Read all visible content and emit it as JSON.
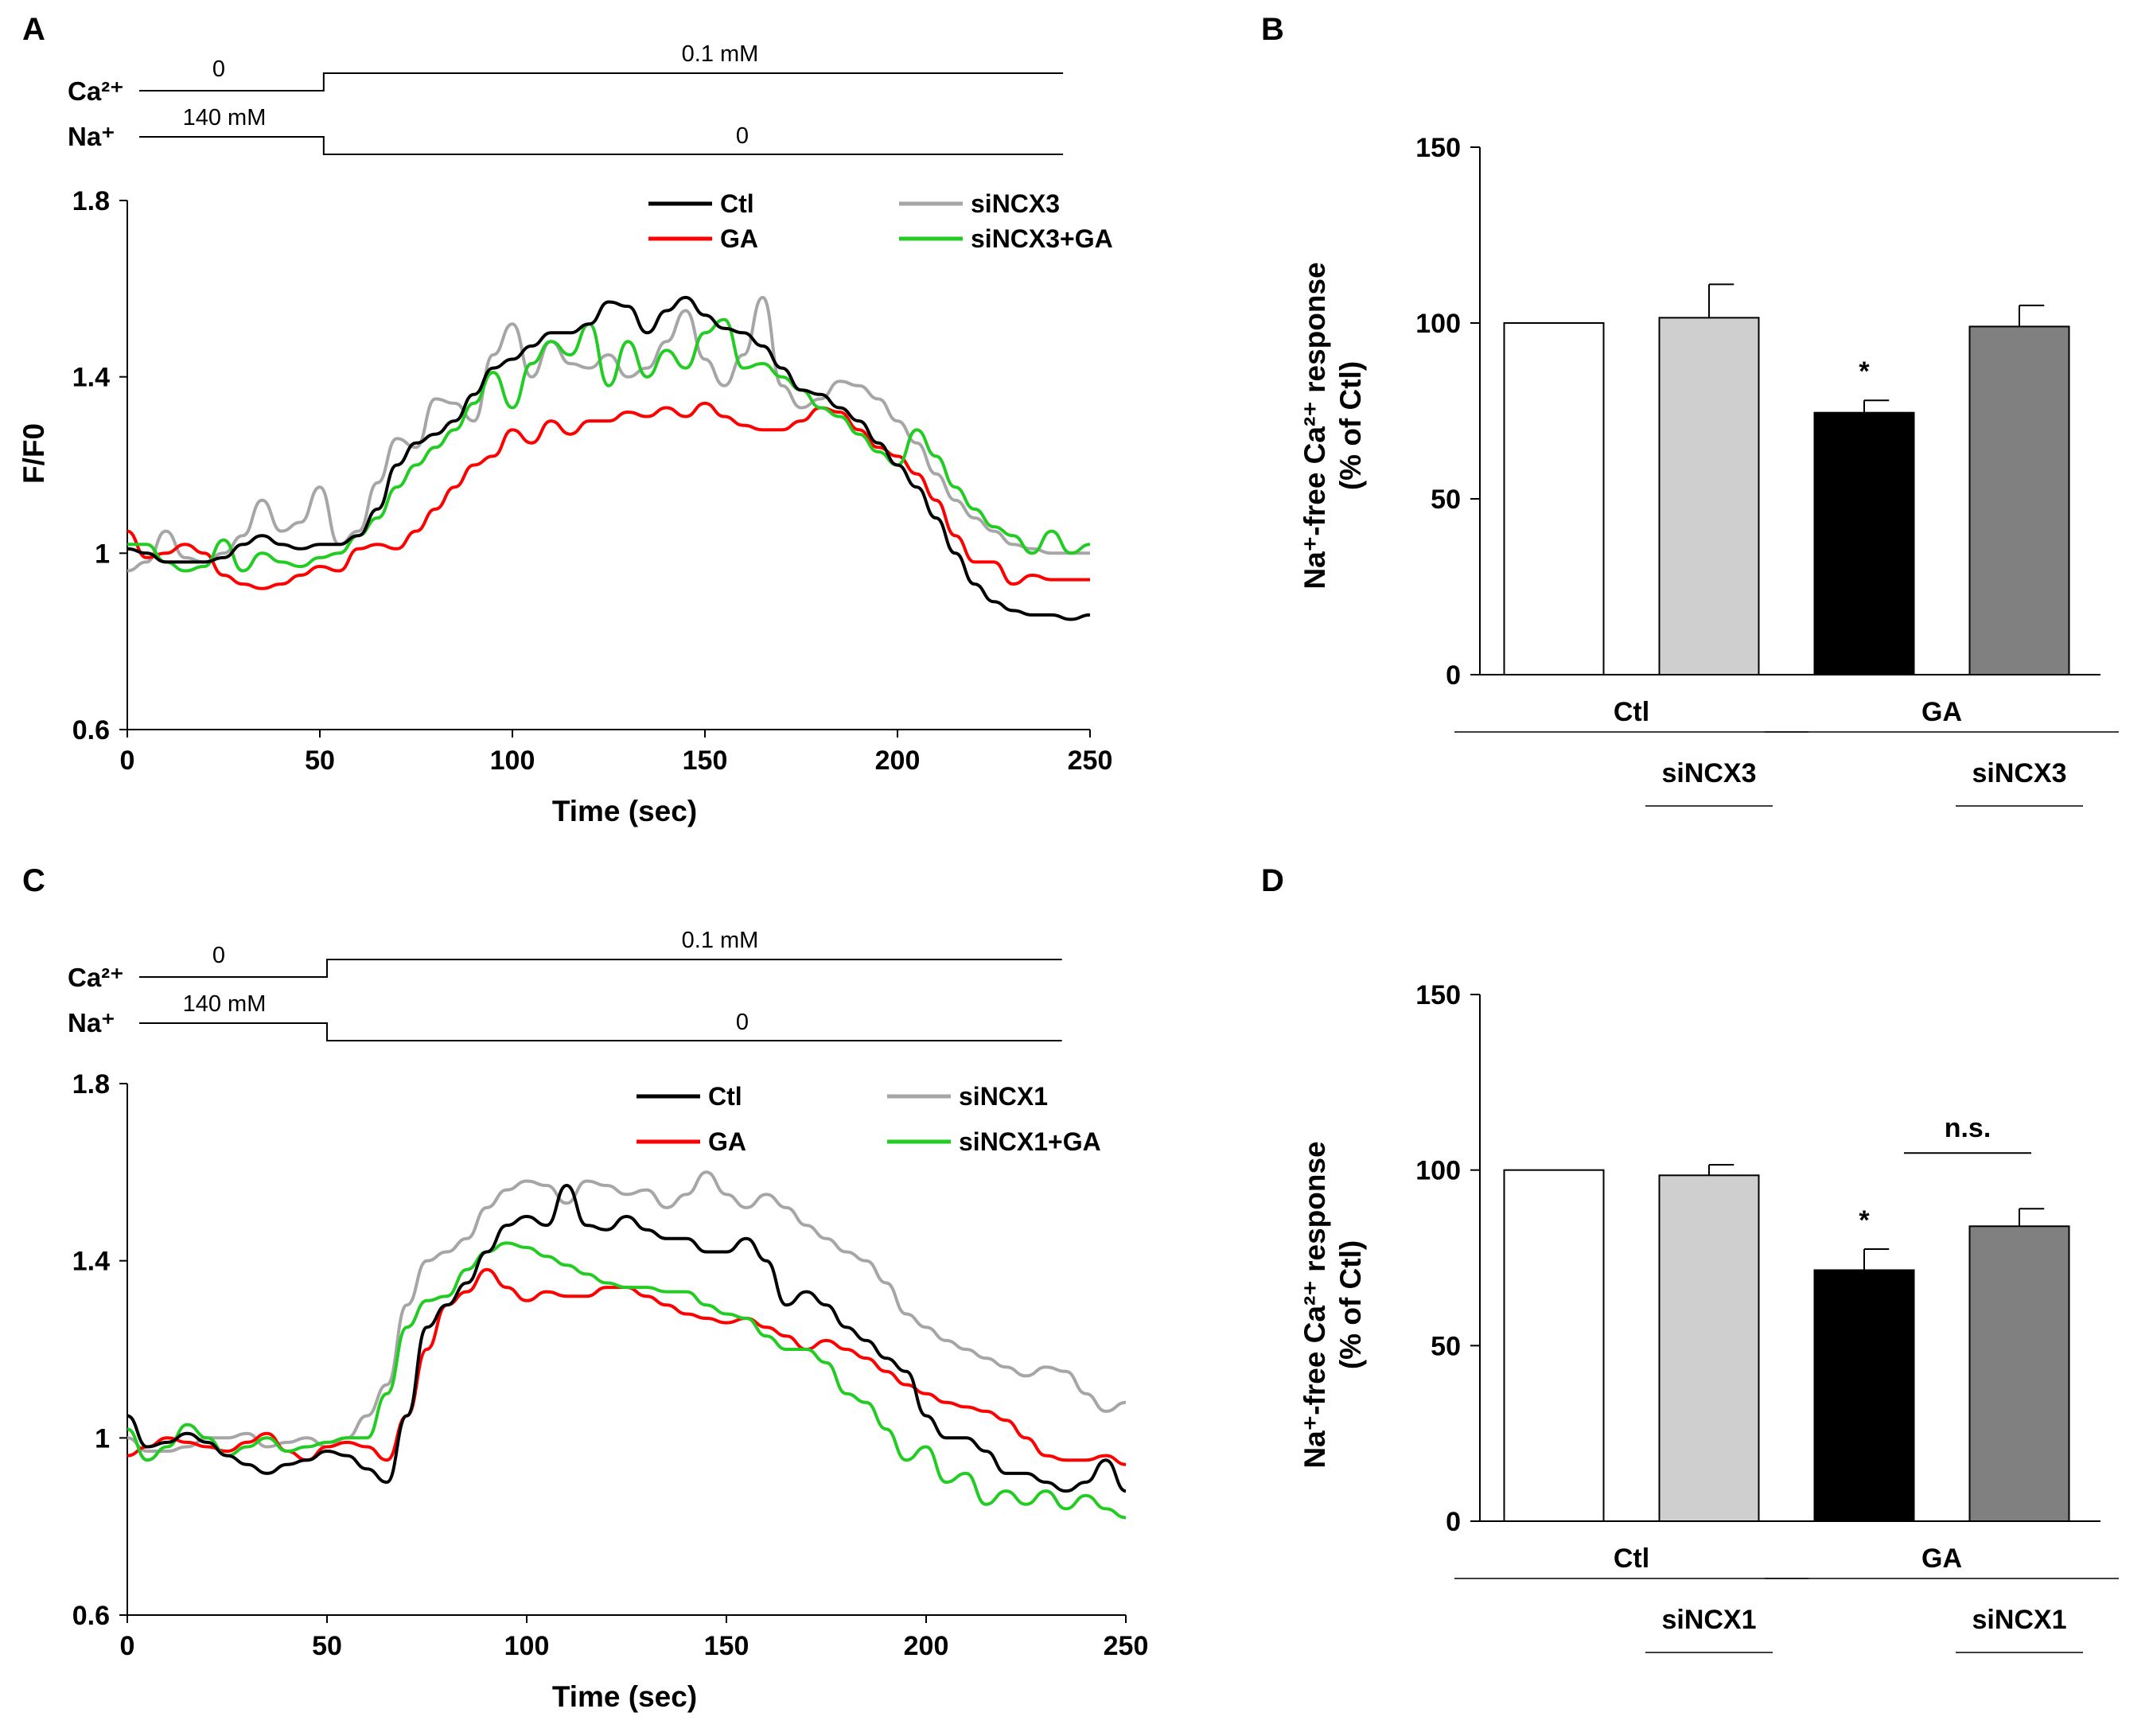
{
  "colors": {
    "ctl": "#000000",
    "siNCX": "#a6a6a6",
    "ga": "#ff0000",
    "siNCX_ga": "#22cc22",
    "bar_ctl": "#ffffff",
    "bar_si": "#cfcfcf",
    "bar_ga": "#000000",
    "bar_si_ga": "#808080"
  },
  "chart_data": [
    {
      "panel": "A",
      "type": "line",
      "xlabel": "Time (sec)",
      "ylabel": "F/F0",
      "xlim": [
        0,
        250
      ],
      "ylim": [
        0.6,
        1.8
      ],
      "xticks": [
        "0",
        "50",
        "100",
        "150",
        "200",
        "250"
      ],
      "yticks": [
        "0.6",
        "1",
        "1.4",
        "1.8"
      ],
      "protocol": {
        "ca_label": "Ca²⁺",
        "na_label": "Na⁺",
        "ca_before": "0",
        "ca_after": "0.1 mM",
        "na_before": "140 mM",
        "na_after": "0",
        "switch_time": 51,
        "end_time": 243
      },
      "series": [
        {
          "name": "Ctl",
          "color_key": "ctl",
          "x": [
            0,
            5,
            10,
            15,
            20,
            25,
            30,
            35,
            40,
            45,
            50,
            55,
            60,
            65,
            70,
            75,
            80,
            85,
            90,
            95,
            100,
            105,
            110,
            115,
            120,
            125,
            130,
            135,
            140,
            145,
            150,
            155,
            160,
            165,
            170,
            175,
            180,
            185,
            190,
            195,
            200,
            205,
            210,
            215,
            220,
            225,
            230,
            235,
            240,
            245,
            250
          ],
          "y": [
            1.01,
            1.0,
            0.98,
            0.98,
            0.98,
            0.99,
            1.02,
            1.04,
            1.02,
            1.01,
            1.02,
            1.02,
            1.04,
            1.1,
            1.2,
            1.25,
            1.27,
            1.3,
            1.36,
            1.42,
            1.44,
            1.47,
            1.5,
            1.5,
            1.52,
            1.57,
            1.56,
            1.5,
            1.55,
            1.58,
            1.54,
            1.51,
            1.5,
            1.47,
            1.42,
            1.37,
            1.36,
            1.33,
            1.3,
            1.25,
            1.2,
            1.15,
            1.08,
            1.0,
            0.93,
            0.89,
            0.87,
            0.86,
            0.86,
            0.85,
            0.86
          ]
        },
        {
          "name": "siNCX3",
          "color_key": "siNCX",
          "x": [
            0,
            5,
            10,
            15,
            20,
            25,
            30,
            35,
            40,
            45,
            50,
            55,
            60,
            65,
            70,
            75,
            80,
            85,
            90,
            95,
            100,
            105,
            110,
            115,
            120,
            125,
            130,
            135,
            140,
            145,
            150,
            155,
            160,
            165,
            170,
            175,
            180,
            185,
            190,
            195,
            200,
            205,
            210,
            215,
            220,
            225,
            230,
            235,
            240,
            245,
            250
          ],
          "y": [
            0.96,
            0.98,
            1.05,
            0.99,
            0.98,
            1.0,
            1.04,
            1.12,
            1.05,
            1.07,
            1.15,
            1.02,
            1.05,
            1.16,
            1.26,
            1.24,
            1.35,
            1.34,
            1.3,
            1.45,
            1.52,
            1.4,
            1.48,
            1.43,
            1.42,
            1.45,
            1.4,
            1.42,
            1.48,
            1.55,
            1.44,
            1.38,
            1.45,
            1.58,
            1.38,
            1.33,
            1.35,
            1.39,
            1.38,
            1.35,
            1.3,
            1.25,
            1.18,
            1.12,
            1.08,
            1.05,
            1.02,
            1.01,
            1.0,
            1.0,
            1.0
          ]
        },
        {
          "name": "GA",
          "color_key": "ga",
          "x": [
            0,
            5,
            10,
            15,
            20,
            25,
            30,
            35,
            40,
            45,
            50,
            55,
            60,
            65,
            70,
            75,
            80,
            85,
            90,
            95,
            100,
            105,
            110,
            115,
            120,
            125,
            130,
            135,
            140,
            145,
            150,
            155,
            160,
            165,
            170,
            175,
            180,
            185,
            190,
            195,
            200,
            205,
            210,
            215,
            220,
            225,
            230,
            235,
            240,
            245,
            250
          ],
          "y": [
            1.05,
            0.99,
            1.0,
            1.02,
            1.0,
            0.95,
            0.93,
            0.92,
            0.93,
            0.95,
            0.97,
            0.96,
            1.01,
            1.02,
            1.01,
            1.05,
            1.1,
            1.15,
            1.2,
            1.22,
            1.28,
            1.25,
            1.3,
            1.27,
            1.3,
            1.3,
            1.32,
            1.31,
            1.33,
            1.31,
            1.34,
            1.31,
            1.29,
            1.28,
            1.28,
            1.3,
            1.33,
            1.32,
            1.28,
            1.24,
            1.22,
            1.18,
            1.12,
            1.04,
            0.98,
            0.98,
            0.93,
            0.95,
            0.94,
            0.94,
            0.94
          ]
        },
        {
          "name": "siNCX3+GA",
          "color_key": "siNCX_ga",
          "x": [
            0,
            5,
            10,
            15,
            20,
            25,
            30,
            35,
            40,
            45,
            50,
            55,
            60,
            65,
            70,
            75,
            80,
            85,
            90,
            95,
            100,
            105,
            110,
            115,
            120,
            125,
            130,
            135,
            140,
            145,
            150,
            155,
            160,
            165,
            170,
            175,
            180,
            185,
            190,
            195,
            200,
            205,
            210,
            215,
            220,
            225,
            230,
            235,
            240,
            245,
            250
          ],
          "y": [
            1.02,
            1.02,
            0.98,
            0.96,
            0.97,
            1.03,
            0.96,
            1.0,
            0.98,
            0.97,
            0.99,
            1.0,
            1.04,
            1.08,
            1.15,
            1.2,
            1.24,
            1.28,
            1.34,
            1.41,
            1.33,
            1.43,
            1.48,
            1.45,
            1.52,
            1.38,
            1.48,
            1.4,
            1.46,
            1.42,
            1.5,
            1.53,
            1.42,
            1.43,
            1.4,
            1.37,
            1.33,
            1.31,
            1.27,
            1.23,
            1.2,
            1.28,
            1.22,
            1.15,
            1.1,
            1.06,
            1.04,
            1.0,
            1.05,
            1.0,
            1.02
          ]
        }
      ]
    },
    {
      "panel": "B",
      "type": "bar",
      "ylabel": "Na⁺-free Ca²⁺ response (% of Ctl)",
      "ylabel_line1": "Na⁺-free Ca²⁺ response",
      "ylabel_line2": "(% of Ctl)",
      "ylim": [
        0,
        150
      ],
      "yticks": [
        "0",
        "50",
        "100",
        "150"
      ],
      "values": [
        100,
        101.5,
        74.5,
        99
      ],
      "errors": [
        0,
        9.5,
        3.5,
        6
      ],
      "bar_color_keys": [
        "bar_ctl",
        "bar_si",
        "bar_ga",
        "bar_si_ga"
      ],
      "group_labels": [
        "Ctl",
        "GA"
      ],
      "sub_labels": [
        "siNCX3",
        "siNCX3"
      ],
      "significance": [
        "",
        "",
        "*",
        ""
      ],
      "comparison": ""
    },
    {
      "panel": "C",
      "type": "line",
      "xlabel": "Time (sec)",
      "ylabel": "",
      "xlim": [
        0,
        250
      ],
      "ylim": [
        0.6,
        1.8
      ],
      "xticks": [
        "0",
        "50",
        "100",
        "150",
        "200",
        "250"
      ],
      "yticks": [
        "0.6",
        "1",
        "1.4",
        "1.8"
      ],
      "protocol": {
        "ca_label": "Ca²⁺",
        "na_label": "Na⁺",
        "ca_before": "0",
        "ca_after": "0.1 mM",
        "na_before": "140 mM",
        "na_after": "0",
        "switch_time": 50,
        "end_time": 234
      },
      "series": [
        {
          "name": "Ctl",
          "color_key": "ctl",
          "x": [
            0,
            5,
            10,
            15,
            20,
            25,
            30,
            35,
            40,
            45,
            50,
            55,
            60,
            65,
            70,
            75,
            80,
            85,
            90,
            95,
            100,
            105,
            110,
            115,
            120,
            125,
            130,
            135,
            140,
            145,
            150,
            155,
            160,
            165,
            170,
            175,
            180,
            185,
            190,
            195,
            200,
            205,
            210,
            215,
            220,
            225,
            230,
            235,
            240,
            245,
            250
          ],
          "y": [
            1.05,
            0.98,
            0.99,
            1.01,
            0.99,
            0.96,
            0.94,
            0.92,
            0.94,
            0.95,
            0.97,
            0.96,
            0.93,
            0.9,
            1.05,
            1.25,
            1.3,
            1.35,
            1.42,
            1.48,
            1.5,
            1.48,
            1.57,
            1.48,
            1.47,
            1.5,
            1.47,
            1.45,
            1.45,
            1.42,
            1.42,
            1.45,
            1.4,
            1.3,
            1.33,
            1.3,
            1.25,
            1.22,
            1.18,
            1.15,
            1.05,
            1.0,
            1.0,
            0.97,
            0.92,
            0.92,
            0.9,
            0.88,
            0.9,
            0.95,
            0.88
          ]
        },
        {
          "name": "siNCX1",
          "color_key": "siNCX",
          "x": [
            0,
            5,
            10,
            15,
            20,
            25,
            30,
            35,
            40,
            45,
            50,
            55,
            60,
            65,
            70,
            75,
            80,
            85,
            90,
            95,
            100,
            105,
            110,
            115,
            120,
            125,
            130,
            135,
            140,
            145,
            150,
            155,
            160,
            165,
            170,
            175,
            180,
            185,
            190,
            195,
            200,
            205,
            210,
            215,
            220,
            225,
            230,
            235,
            240,
            245,
            250
          ],
          "y": [
            1.0,
            0.97,
            0.97,
            0.98,
            1.0,
            1.0,
            1.01,
            0.98,
            0.99,
            1.0,
            0.98,
            1.0,
            1.05,
            1.12,
            1.3,
            1.4,
            1.42,
            1.45,
            1.52,
            1.56,
            1.58,
            1.57,
            1.53,
            1.58,
            1.57,
            1.55,
            1.56,
            1.52,
            1.55,
            1.6,
            1.55,
            1.52,
            1.55,
            1.52,
            1.48,
            1.45,
            1.42,
            1.4,
            1.35,
            1.28,
            1.25,
            1.22,
            1.2,
            1.18,
            1.16,
            1.14,
            1.16,
            1.15,
            1.1,
            1.06,
            1.08
          ]
        },
        {
          "name": "GA",
          "color_key": "ga",
          "x": [
            0,
            5,
            10,
            15,
            20,
            25,
            30,
            35,
            40,
            45,
            50,
            55,
            60,
            65,
            70,
            75,
            80,
            85,
            90,
            95,
            100,
            105,
            110,
            115,
            120,
            125,
            130,
            135,
            140,
            145,
            150,
            155,
            160,
            165,
            170,
            175,
            180,
            185,
            190,
            195,
            200,
            205,
            210,
            215,
            220,
            225,
            230,
            235,
            240,
            245,
            250
          ],
          "y": [
            0.96,
            0.98,
            1.0,
            0.99,
            0.98,
            0.97,
            0.99,
            1.01,
            0.97,
            0.95,
            0.98,
            0.99,
            0.98,
            0.95,
            1.05,
            1.2,
            1.3,
            1.33,
            1.38,
            1.34,
            1.31,
            1.33,
            1.32,
            1.32,
            1.34,
            1.34,
            1.32,
            1.3,
            1.28,
            1.27,
            1.26,
            1.27,
            1.25,
            1.23,
            1.2,
            1.22,
            1.2,
            1.18,
            1.15,
            1.12,
            1.1,
            1.08,
            1.07,
            1.06,
            1.04,
            1.0,
            0.96,
            0.95,
            0.95,
            0.96,
            0.94
          ]
        },
        {
          "name": "siNCX1+GA",
          "color_key": "siNCX_ga",
          "x": [
            0,
            5,
            10,
            15,
            20,
            25,
            30,
            35,
            40,
            45,
            50,
            55,
            60,
            65,
            70,
            75,
            80,
            85,
            90,
            95,
            100,
            105,
            110,
            115,
            120,
            125,
            130,
            135,
            140,
            145,
            150,
            155,
            160,
            165,
            170,
            175,
            180,
            185,
            190,
            195,
            200,
            205,
            210,
            215,
            220,
            225,
            230,
            235,
            240,
            245,
            250
          ],
          "y": [
            1.02,
            0.95,
            0.98,
            1.03,
            1.0,
            0.96,
            0.98,
            1.0,
            0.97,
            0.98,
            0.99,
            1.0,
            1.0,
            1.1,
            1.25,
            1.31,
            1.32,
            1.38,
            1.42,
            1.44,
            1.43,
            1.41,
            1.39,
            1.37,
            1.35,
            1.34,
            1.34,
            1.33,
            1.33,
            1.3,
            1.28,
            1.27,
            1.23,
            1.2,
            1.2,
            1.17,
            1.1,
            1.08,
            1.02,
            0.95,
            0.98,
            0.9,
            0.92,
            0.85,
            0.88,
            0.85,
            0.88,
            0.84,
            0.87,
            0.84,
            0.82
          ]
        }
      ]
    },
    {
      "panel": "D",
      "type": "bar",
      "ylabel": "Na⁺-free Ca²⁺ response (% of Ctl)",
      "ylabel_line1": "Na⁺-free Ca²⁺ response",
      "ylabel_line2": "(% of Ctl)",
      "ylim": [
        0,
        150
      ],
      "yticks": [
        "0",
        "50",
        "100",
        "150"
      ],
      "values": [
        100,
        98.5,
        71.5,
        84
      ],
      "errors": [
        0,
        3,
        6,
        5
      ],
      "bar_color_keys": [
        "bar_ctl",
        "bar_si",
        "bar_ga",
        "bar_si_ga"
      ],
      "group_labels": [
        "Ctl",
        "GA"
      ],
      "sub_labels": [
        "siNCX1",
        "siNCX1"
      ],
      "significance": [
        "",
        "",
        "*",
        ""
      ],
      "comparison": "n.s."
    }
  ]
}
